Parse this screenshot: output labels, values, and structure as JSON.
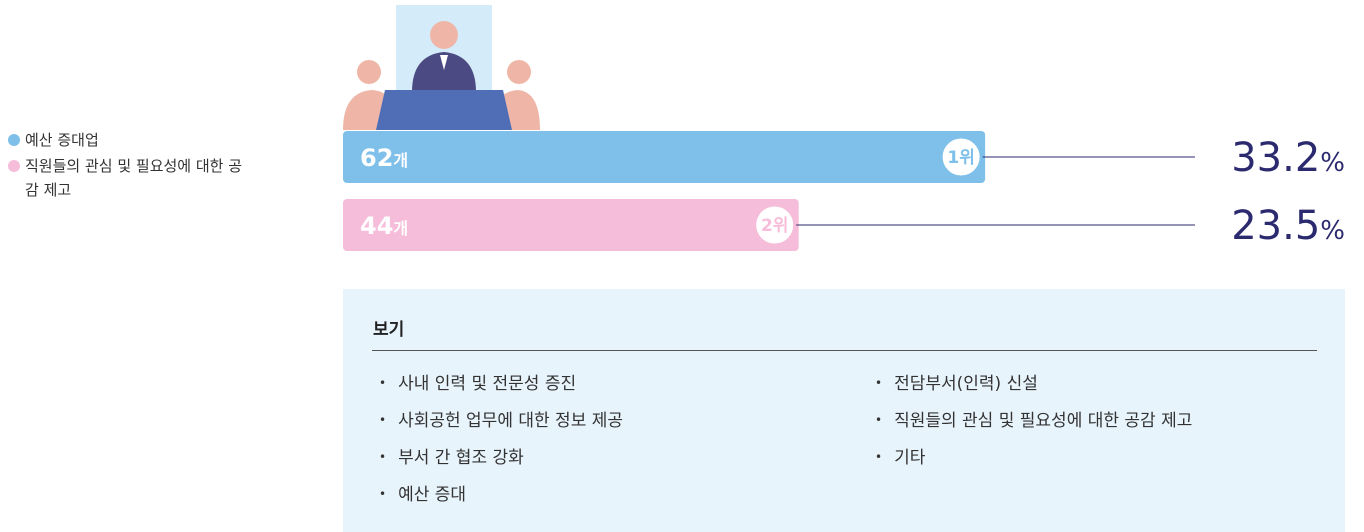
{
  "chart_data": {
    "type": "bar",
    "categories": [
      "예산 증대업",
      "직원들의 관심 및 필요성에 대한 공감 제고"
    ],
    "values": [
      62,
      44
    ],
    "value_unit": "개",
    "rank_labels": [
      "1위",
      "2위"
    ],
    "shares": [
      33.2,
      23.5
    ],
    "share_unit": "%",
    "colors": [
      "#7ec0e9",
      "#f5bdd9"
    ],
    "xlim": [
      0,
      70
    ]
  },
  "options_box": {
    "title": "보기",
    "items": [
      "사내 인력 및 전문성 증진",
      "사회공헌 업무에 대한 정보 제공",
      "부서 간 협조 강화",
      "예산 증대",
      "전담부서(인력) 신설",
      "직원들의 관심 및 필요성에 대한 공감 제고",
      "기타"
    ]
  }
}
